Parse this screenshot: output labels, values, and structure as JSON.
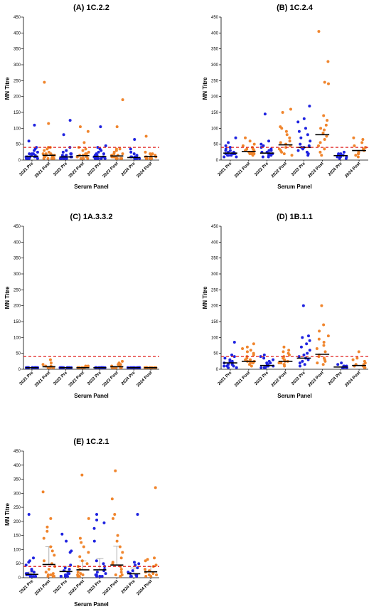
{
  "colors": {
    "pre": "#1f23e0",
    "post": "#f0852d",
    "threshold": "#e0201e",
    "errorbar": "#9a9a9a"
  },
  "chart_data": [
    {
      "type": "scatter",
      "title": "(A) 1C.2.2",
      "ylabel": "MN Titre",
      "xlabel": "Serum Panel",
      "ylim": [
        0,
        450
      ],
      "yticks": [
        0,
        50,
        100,
        150,
        200,
        250,
        300,
        350,
        400,
        450
      ],
      "threshold": 40,
      "categories": [
        "2021 Pre",
        "2021 Post",
        "2022 Pre",
        "2022 Post",
        "2023 Pre",
        "2023 Post",
        "2024 Pre",
        "2024 Post"
      ],
      "series": [
        {
          "values": [
            [
              10,
              5,
              5,
              5,
              5,
              5,
              5,
              10,
              10,
              10,
              10,
              15,
              15,
              20,
              20,
              20,
              25,
              30,
              35,
              40,
              60,
              110
            ],
            [
              5,
              5,
              5,
              5,
              10,
              10,
              10,
              10,
              15,
              15,
              15,
              20,
              20,
              20,
              25,
              30,
              35,
              40,
              40,
              115,
              245
            ],
            [
              5,
              5,
              5,
              5,
              5,
              5,
              5,
              10,
              10,
              10,
              10,
              15,
              15,
              20,
              20,
              25,
              30,
              40,
              80,
              125
            ],
            [
              5,
              5,
              5,
              5,
              10,
              10,
              10,
              15,
              15,
              15,
              20,
              20,
              25,
              30,
              35,
              40,
              55,
              90,
              105
            ],
            [
              5,
              5,
              5,
              5,
              5,
              10,
              10,
              10,
              10,
              15,
              15,
              20,
              20,
              25,
              30,
              35,
              40,
              45,
              105
            ],
            [
              5,
              5,
              5,
              5,
              10,
              10,
              10,
              10,
              15,
              15,
              20,
              20,
              25,
              30,
              35,
              35,
              105,
              190
            ],
            [
              5,
              5,
              5,
              5,
              5,
              5,
              10,
              10,
              10,
              10,
              15,
              20,
              25,
              35,
              65
            ],
            [
              5,
              5,
              5,
              5,
              5,
              10,
              10,
              10,
              15,
              15,
              20,
              20,
              25,
              75
            ]
          ],
          "medians": [
            12,
            15,
            10,
            14,
            11,
            13,
            8,
            11
          ]
        }
      ]
    },
    {
      "type": "scatter",
      "title": "(B) 1C.2.4",
      "ylabel": "MN Titre",
      "xlabel": "Serum Panel",
      "ylim": [
        0,
        450
      ],
      "yticks": [
        0,
        50,
        100,
        150,
        200,
        250,
        300,
        350,
        400,
        450
      ],
      "threshold": 40,
      "categories": [
        "2021 Pre",
        "2021 Post",
        "2022 Pre",
        "2022 Post",
        "2023 Pre",
        "2023 Post",
        "2024 Pre",
        "2024 Post"
      ],
      "series": [
        {
          "values": [
            [
              10,
              10,
              15,
              15,
              15,
              20,
              20,
              20,
              20,
              25,
              25,
              30,
              30,
              35,
              40,
              45,
              55,
              70
            ],
            [
              15,
              20,
              20,
              20,
              25,
              25,
              25,
              30,
              30,
              30,
              35,
              35,
              40,
              45,
              50,
              60,
              70
            ],
            [
              10,
              10,
              15,
              15,
              20,
              20,
              20,
              25,
              25,
              30,
              30,
              35,
              40,
              45,
              50,
              60,
              145
            ],
            [
              15,
              20,
              25,
              30,
              35,
              40,
              45,
              50,
              55,
              60,
              70,
              80,
              90,
              100,
              105,
              150,
              160
            ],
            [
              15,
              20,
              25,
              30,
              35,
              40,
              40,
              45,
              50,
              60,
              70,
              80,
              90,
              100,
              120,
              130,
              170
            ],
            [
              15,
              25,
              35,
              45,
              55,
              65,
              75,
              85,
              95,
              100,
              110,
              125,
              140,
              240,
              245,
              310,
              405
            ],
            [
              5,
              5,
              10,
              10,
              10,
              15,
              15,
              15,
              20,
              20,
              25
            ],
            [
              10,
              15,
              20,
              20,
              25,
              25,
              30,
              35,
              40,
              45,
              55,
              65,
              70
            ]
          ],
          "medians": [
            22,
            27,
            22,
            48,
            40,
            80,
            14,
            30
          ]
        }
      ]
    },
    {
      "type": "scatter",
      "title": "(C) 1A.3.3.2",
      "ylabel": "MN Titre",
      "xlabel": "Serum Panel",
      "ylim": [
        0,
        450
      ],
      "yticks": [
        0,
        50,
        100,
        150,
        200,
        250,
        300,
        350,
        400,
        450
      ],
      "threshold": 40,
      "categories": [
        "2021 Pre",
        "2021 Post",
        "2022 Pre",
        "2022 Post",
        "2023 Pre",
        "2023 Post",
        "2024 Pre",
        "2024 Post"
      ],
      "series": [
        {
          "values": [
            [
              5,
              5,
              5,
              5,
              5,
              5,
              5,
              5,
              5,
              5,
              5,
              5,
              5,
              5
            ],
            [
              5,
              5,
              5,
              5,
              5,
              5,
              5,
              10,
              10,
              15,
              20,
              30
            ],
            [
              5,
              5,
              5,
              5,
              5,
              5,
              5,
              5,
              5,
              5,
              5,
              5,
              5
            ],
            [
              5,
              5,
              5,
              5,
              5,
              5,
              5,
              5,
              10,
              10
            ],
            [
              5,
              5,
              5,
              5,
              5,
              5,
              5,
              5,
              5,
              5,
              5,
              5,
              5
            ],
            [
              5,
              5,
              5,
              5,
              5,
              5,
              10,
              10,
              15,
              15,
              20,
              25
            ],
            [
              5,
              5,
              5,
              5,
              5,
              5,
              5,
              5,
              5,
              5,
              5,
              5,
              5
            ],
            [
              5,
              5,
              5,
              5,
              5,
              5,
              5,
              5,
              5,
              5,
              5
            ]
          ],
          "medians": [
            5,
            8,
            5,
            5,
            5,
            8,
            5,
            5
          ]
        }
      ]
    },
    {
      "type": "scatter",
      "title": "(D) 1B.1.1",
      "ylabel": "MN Titre",
      "xlabel": "Serum Panel",
      "ylim": [
        0,
        450
      ],
      "yticks": [
        0,
        50,
        100,
        150,
        200,
        250,
        300,
        350,
        400,
        450
      ],
      "threshold": 40,
      "categories": [
        "2021 Pre",
        "2021 Post",
        "2022 Pre",
        "2022 Post",
        "2023 Pre",
        "2023 Post",
        "2024 Pre",
        "2024 Post"
      ],
      "series": [
        {
          "values": [
            [
              5,
              5,
              10,
              10,
              10,
              15,
              15,
              20,
              20,
              25,
              25,
              30,
              35,
              40,
              45,
              85
            ],
            [
              10,
              15,
              20,
              20,
              25,
              25,
              30,
              30,
              35,
              40,
              45,
              50,
              55,
              60,
              65,
              70,
              80
            ],
            [
              5,
              5,
              5,
              10,
              10,
              10,
              15,
              15,
              20,
              20,
              25,
              30,
              35,
              40,
              45
            ],
            [
              10,
              15,
              15,
              20,
              20,
              25,
              25,
              30,
              35,
              40,
              45,
              50,
              55,
              60,
              70
            ],
            [
              10,
              15,
              20,
              25,
              30,
              35,
              40,
              45,
              50,
              60,
              70,
              80,
              90,
              100,
              105,
              200
            ],
            [
              15,
              20,
              25,
              30,
              35,
              40,
              45,
              55,
              65,
              75,
              85,
              95,
              105,
              120,
              140,
              200
            ],
            [
              5,
              5,
              5,
              5,
              10,
              10,
              10,
              15,
              20
            ],
            [
              5,
              5,
              10,
              10,
              15,
              15,
              20,
              25,
              30,
              35,
              55
            ]
          ],
          "medians": [
            20,
            25,
            12,
            25,
            35,
            47,
            7,
            12
          ]
        }
      ]
    },
    {
      "type": "scatter",
      "title": "(E) 1C.2.1",
      "ylabel": "MN Titre",
      "xlabel": "Serum Panel",
      "ylim": [
        0,
        450
      ],
      "yticks": [
        0,
        50,
        100,
        150,
        200,
        250,
        300,
        350,
        400,
        450
      ],
      "threshold": 40,
      "categories": [
        "2021 Pre",
        "2021 Post",
        "2022 Pre",
        "2022 Post",
        "2023 Pre",
        "2023 Post",
        "2024 Pre",
        "2024 Post"
      ],
      "series": [
        {
          "values": [
            [
              5,
              5,
              5,
              5,
              5,
              10,
              10,
              10,
              15,
              15,
              20,
              25,
              30,
              45,
              55,
              60,
              70,
              225
            ],
            [
              5,
              5,
              5,
              10,
              10,
              15,
              20,
              30,
              40,
              50,
              60,
              80,
              95,
              110,
              140,
              165,
              180,
              210,
              305
            ],
            [
              5,
              5,
              5,
              5,
              10,
              10,
              15,
              20,
              25,
              30,
              35,
              45,
              90,
              95,
              130,
              155
            ],
            [
              5,
              5,
              10,
              10,
              15,
              20,
              30,
              40,
              50,
              60,
              75,
              90,
              110,
              125,
              140,
              210,
              365
            ],
            [
              5,
              5,
              5,
              5,
              10,
              10,
              15,
              20,
              25,
              30,
              40,
              50,
              60,
              130,
              175,
              195,
              205,
              225
            ],
            [
              5,
              5,
              10,
              10,
              20,
              30,
              40,
              50,
              55,
              70,
              90,
              110,
              130,
              150,
              210,
              225,
              280,
              380
            ],
            [
              5,
              5,
              5,
              5,
              10,
              10,
              15,
              20,
              25,
              35,
              45,
              50,
              55,
              225
            ],
            [
              5,
              5,
              10,
              10,
              15,
              20,
              25,
              30,
              40,
              45,
              60,
              65,
              70,
              320
            ]
          ],
          "medians": [
            12,
            47,
            22,
            28,
            28,
            45,
            14,
            21
          ],
          "error_upper": [
            20,
            110,
            40,
            60,
            68,
            112,
            35,
            40
          ]
        }
      ]
    }
  ]
}
